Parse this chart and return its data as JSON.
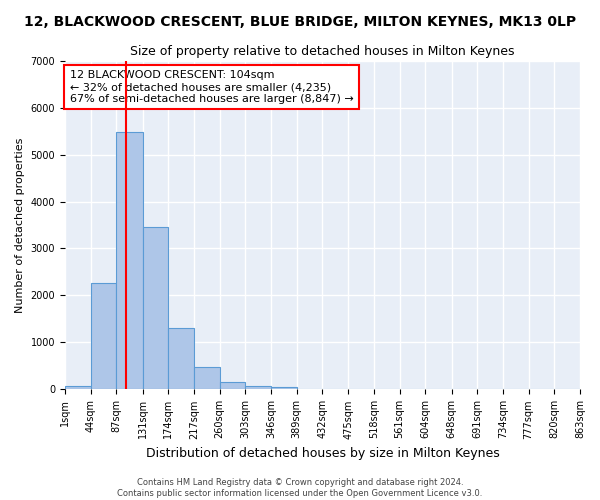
{
  "title": "12, BLACKWOOD CRESCENT, BLUE BRIDGE, MILTON KEYNES, MK13 0LP",
  "subtitle": "Size of property relative to detached houses in Milton Keynes",
  "xlabel": "Distribution of detached houses by size in Milton Keynes",
  "ylabel": "Number of detached properties",
  "bin_edges": [
    1,
    44,
    87,
    131,
    174,
    217,
    260,
    303,
    346,
    389,
    432,
    475,
    518,
    561,
    604,
    648,
    691,
    734,
    777,
    820,
    863
  ],
  "bar_heights": [
    75,
    2270,
    5470,
    3450,
    1310,
    470,
    155,
    80,
    50,
    15,
    5,
    3,
    2,
    1,
    1,
    0,
    0,
    0,
    0,
    0
  ],
  "bar_color": "#aec6e8",
  "bar_edgecolor": "#5b9bd5",
  "background_color": "#e8eef7",
  "fig_background_color": "#ffffff",
  "grid_color": "#ffffff",
  "red_line_x": 104,
  "annotation_text": "12 BLACKWOOD CRESCENT: 104sqm\n← 32% of detached houses are smaller (4,235)\n67% of semi-detached houses are larger (8,847) →",
  "ylim": [
    0,
    7000
  ],
  "footer_line1": "Contains HM Land Registry data © Crown copyright and database right 2024.",
  "footer_line2": "Contains public sector information licensed under the Open Government Licence v3.0.",
  "title_fontsize": 10,
  "subtitle_fontsize": 9,
  "xlabel_fontsize": 9,
  "ylabel_fontsize": 8,
  "tick_fontsize": 7,
  "tick_labels": [
    "1sqm",
    "44sqm",
    "87sqm",
    "131sqm",
    "174sqm",
    "217sqm",
    "260sqm",
    "303sqm",
    "346sqm",
    "389sqm",
    "432sqm",
    "475sqm",
    "518sqm",
    "561sqm",
    "604sqm",
    "648sqm",
    "691sqm",
    "734sqm",
    "777sqm",
    "820sqm",
    "863sqm"
  ]
}
